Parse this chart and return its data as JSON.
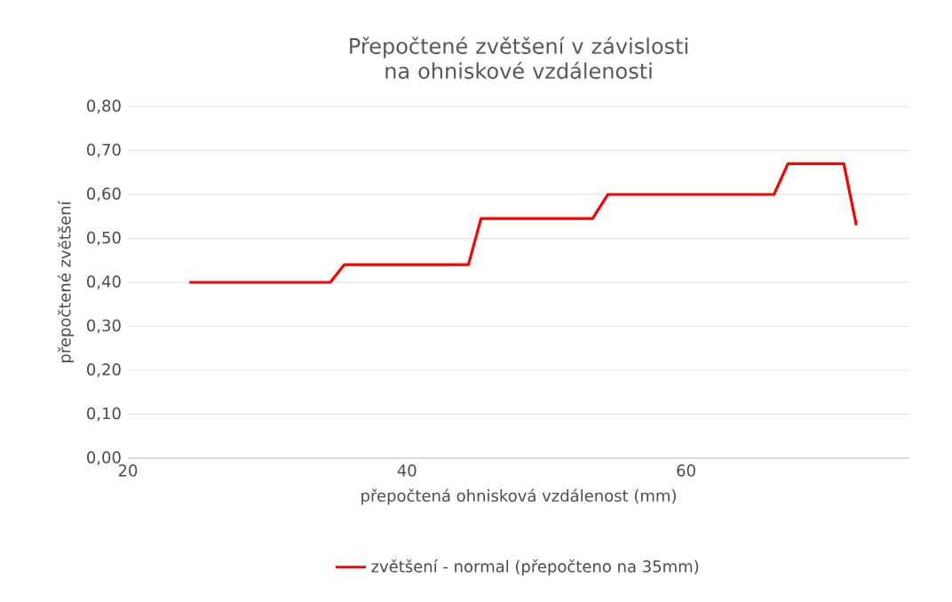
{
  "chart_data": {
    "type": "line",
    "title": "Přepočtené zvětšení v závislosti na ohniskové vzdálenosti",
    "xlabel": "přepočtená ohnisková vzdálenost (mm)",
    "ylabel": "přepočtené  zvětšení",
    "x": [
      24.4,
      34.5,
      35.5,
      44.4,
      45.3,
      53.3,
      54.4,
      66.3,
      67.3,
      71.3,
      72.2
    ],
    "series": [
      {
        "name": "zvětšení - normal (přepočteno na 35mm)",
        "color": "#ff0000",
        "values": [
          0.4,
          0.4,
          0.44,
          0.44,
          0.545,
          0.545,
          0.6,
          0.6,
          0.67,
          0.67,
          0.53
        ]
      }
    ],
    "xlim": [
      20,
      76
    ],
    "xticks": [
      20,
      40,
      60
    ],
    "ylim": [
      0,
      0.8
    ],
    "yticks": [
      {
        "value": 0,
        "label": "0,00"
      },
      {
        "value": 0.1,
        "label": "0,10"
      },
      {
        "value": 0.2,
        "label": "0,20"
      },
      {
        "value": 0.3,
        "label": "0,30"
      },
      {
        "value": 0.4,
        "label": "0,40"
      },
      {
        "value": 0.5,
        "label": "0,50"
      },
      {
        "value": 0.6,
        "label": "0,60"
      },
      {
        "value": 0.7,
        "label": "0,70"
      },
      {
        "value": 0.8,
        "label": "0,80"
      }
    ],
    "grid": "y",
    "legend": "bottom",
    "marker": "none",
    "line_style": "solid"
  }
}
